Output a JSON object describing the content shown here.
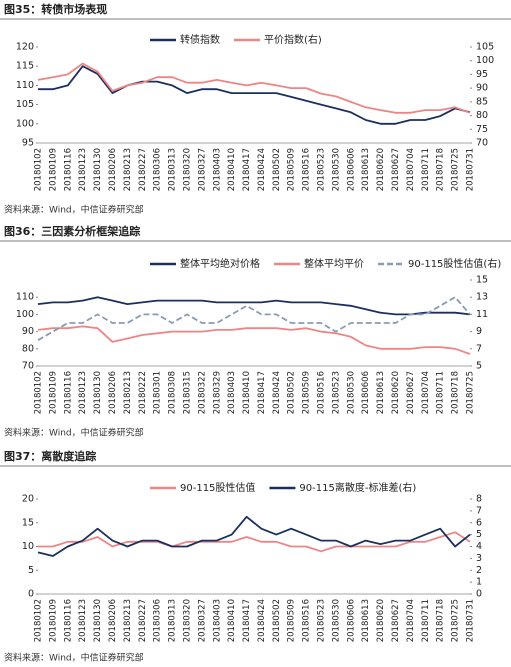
{
  "chart_data": [
    {
      "type": "line",
      "title": "图35：转债市场表现",
      "source": "资料来源：Wind，中信证券研究部",
      "categories": [
        "20180102",
        "20180109",
        "20180116",
        "20180123",
        "20180130",
        "20180206",
        "20180213",
        "20180227",
        "20180306",
        "20180313",
        "20180320",
        "20180327",
        "20180403",
        "20180410",
        "20180417",
        "20180424",
        "20180502",
        "20180509",
        "20180516",
        "20180523",
        "20180530",
        "20180606",
        "20180613",
        "20180620",
        "20180627",
        "20180704",
        "20180711",
        "20180718",
        "20180725",
        "20180731"
      ],
      "series": [
        {
          "name": "转债指数",
          "color": "#1b2f5e",
          "axis": "y",
          "values": [
            109,
            109,
            110,
            115,
            113,
            108,
            110,
            111,
            111,
            110,
            108,
            109,
            109,
            108,
            108,
            108,
            108,
            107,
            106,
            105,
            104,
            103,
            101,
            100,
            100,
            101,
            101,
            102,
            104,
            103
          ]
        },
        {
          "name": "平价指数(右)",
          "color": "#ee8585",
          "axis": "y2",
          "values": [
            93,
            94,
            95,
            99,
            96,
            89,
            91,
            92,
            94,
            94,
            92,
            92,
            93,
            92,
            91,
            92,
            91,
            90,
            90,
            88,
            87,
            85,
            83,
            82,
            81,
            81,
            82,
            82,
            83,
            81
          ]
        }
      ],
      "ylim": [
        95,
        120
      ],
      "yticks": [
        95,
        100,
        105,
        110,
        115,
        120
      ],
      "y2lim": [
        70,
        105
      ],
      "y2ticks": [
        70,
        75,
        80,
        85,
        90,
        95,
        100,
        105
      ]
    },
    {
      "type": "line",
      "title": "图36：三因素分析框架追踪",
      "source": "资料来源：Wind，中信证券研究部",
      "categories": [
        "20180102",
        "20180109",
        "20180116",
        "20180123",
        "20180130",
        "20180206",
        "20180213",
        "20180222",
        "20180301",
        "20180308",
        "20180315",
        "20180322",
        "20180329",
        "20180403",
        "20180410",
        "20180417",
        "20180424",
        "20180502",
        "20180509",
        "20180516",
        "20180523",
        "20180530",
        "20180606",
        "20180613",
        "20180620",
        "20180627",
        "20180704",
        "20180711",
        "20180718",
        "20180725"
      ],
      "series": [
        {
          "name": "整体平均绝对价格",
          "color": "#1b2f5e",
          "axis": "y",
          "values": [
            106,
            107,
            107,
            108,
            110,
            108,
            106,
            107,
            108,
            108,
            108,
            108,
            107,
            107,
            107,
            107,
            108,
            107,
            107,
            107,
            106,
            105,
            103,
            101,
            100,
            100,
            101,
            101,
            101,
            100
          ]
        },
        {
          "name": "整体平均平价",
          "color": "#ee8585",
          "axis": "y",
          "values": [
            91,
            92,
            92,
            93,
            92,
            84,
            86,
            88,
            89,
            90,
            90,
            90,
            91,
            91,
            92,
            92,
            92,
            91,
            92,
            90,
            89,
            87,
            82,
            80,
            80,
            80,
            81,
            81,
            80,
            77
          ]
        },
        {
          "name": "90-115股性估值(右)",
          "color": "#8a9bb5",
          "axis": "y2",
          "line_style": "dashed",
          "values": [
            8,
            9,
            10,
            10,
            11,
            10,
            10,
            11,
            11,
            10,
            11,
            10,
            10,
            11,
            12,
            11,
            11,
            10,
            10,
            10,
            9,
            10,
            10,
            10,
            10,
            11,
            11,
            12,
            13,
            11
          ]
        }
      ],
      "ylim": [
        70,
        120
      ],
      "yticks": [
        70,
        80,
        90,
        100,
        110
      ],
      "y2lim": [
        5,
        15
      ],
      "y2ticks": [
        5,
        7,
        9,
        11,
        13,
        15
      ]
    },
    {
      "type": "line",
      "title": "图37：离散度追踪",
      "source": "资料来源：Wind，中信证券研究部",
      "categories": [
        "20180102",
        "20180109",
        "20180116",
        "20180123",
        "20180130",
        "20180206",
        "20180213",
        "20180227",
        "20180306",
        "20180313",
        "20180320",
        "20180327",
        "20180403",
        "20180410",
        "20180417",
        "20180424",
        "20180502",
        "20180509",
        "20180516",
        "20180523",
        "20180530",
        "20180606",
        "20180613",
        "20180620",
        "20180627",
        "20180704",
        "20180711",
        "20180718",
        "20180725",
        "20180731"
      ],
      "series": [
        {
          "name": "90-115股性估值",
          "color": "#ee8585",
          "axis": "y",
          "values": [
            10,
            10,
            11,
            11,
            12,
            10,
            11,
            11,
            11,
            10,
            11,
            11,
            11,
            11,
            12,
            11,
            11,
            10,
            10,
            9,
            10,
            10,
            10,
            10,
            10,
            11,
            11,
            12,
            13,
            11
          ]
        },
        {
          "name": "90-115离散度-标准差(右)",
          "color": "#1b2f5e",
          "axis": "y2",
          "values": [
            3.5,
            3.2,
            4,
            4.5,
            5.5,
            4.5,
            4,
            4.5,
            4.5,
            4,
            4,
            4.5,
            4.5,
            5,
            6.5,
            5.5,
            5,
            5.5,
            5,
            4.5,
            4.5,
            4,
            4.5,
            4.2,
            4.5,
            4.5,
            5,
            5.5,
            4,
            5
          ]
        }
      ],
      "ylim": [
        0,
        20
      ],
      "yticks": [
        0,
        5,
        10,
        15,
        20
      ],
      "y2lim": [
        0,
        8
      ],
      "y2ticks": [
        0,
        1,
        2,
        3,
        4,
        5,
        6,
        7,
        8
      ]
    }
  ]
}
